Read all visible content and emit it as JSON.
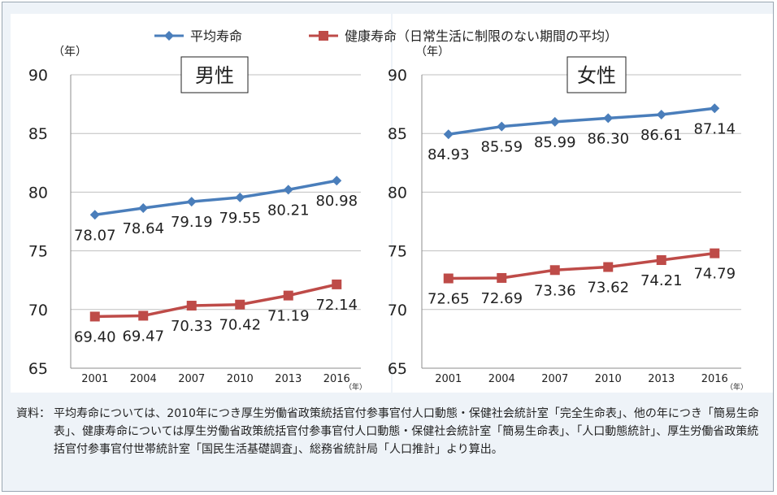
{
  "legend": {
    "series": [
      {
        "name": "平均寿命",
        "color": "#4a7ebb",
        "marker": "diamond"
      },
      {
        "name": "健康寿命（日常生活に制限のない期間の平均）",
        "color": "#be4b48",
        "marker": "square"
      }
    ]
  },
  "chart_data": [
    {
      "type": "line",
      "title": "男性",
      "ylabel": "（年）",
      "xlabel": "（年）",
      "x": [
        "2001",
        "2004",
        "2007",
        "2010",
        "2013",
        "2016"
      ],
      "y_ticks": [
        "65",
        "70",
        "75",
        "80",
        "85",
        "90"
      ],
      "ylim": [
        65,
        90
      ],
      "grid": true,
      "series": [
        {
          "name": "平均寿命",
          "color": "#4a7ebb",
          "marker": "diamond",
          "values": [
            78.07,
            78.64,
            79.19,
            79.55,
            80.21,
            80.98
          ],
          "labels": [
            "78.07",
            "78.64",
            "79.19",
            "79.55",
            "80.21",
            "80.98"
          ]
        },
        {
          "name": "健康寿命（日常生活に制限のない期間の平均）",
          "color": "#be4b48",
          "marker": "square",
          "values": [
            69.4,
            69.47,
            70.33,
            70.42,
            71.19,
            72.14
          ],
          "labels": [
            "69.40",
            "69.47",
            "70.33",
            "70.42",
            "71.19",
            "72.14"
          ]
        }
      ]
    },
    {
      "type": "line",
      "title": "女性",
      "ylabel": "（年）",
      "xlabel": "（年）",
      "x": [
        "2001",
        "2004",
        "2007",
        "2010",
        "2013",
        "2016"
      ],
      "y_ticks": [
        "65",
        "70",
        "75",
        "80",
        "85",
        "90"
      ],
      "ylim": [
        65,
        90
      ],
      "grid": true,
      "series": [
        {
          "name": "平均寿命",
          "color": "#4a7ebb",
          "marker": "diamond",
          "values": [
            84.93,
            85.59,
            85.99,
            86.3,
            86.61,
            87.14
          ],
          "labels": [
            "84.93",
            "85.59",
            "85.99",
            "86.30",
            "86.61",
            "87.14"
          ]
        },
        {
          "name": "健康寿命（日常生活に制限のない期間の平均）",
          "color": "#be4b48",
          "marker": "square",
          "values": [
            72.65,
            72.69,
            73.36,
            73.62,
            74.21,
            74.79
          ],
          "labels": [
            "72.65",
            "72.69",
            "73.36",
            "73.62",
            "74.21",
            "74.79"
          ]
        }
      ]
    }
  ],
  "note": {
    "label": "資料：",
    "text": "平均寿命については、2010年につき厚生労働省政策統括官付参事官付人口動態・保健社会統計室「完全生命表」、他の年につき「簡易生命表」、健康寿命については厚生労働省政策統括官付参事官付人口動態・保健社会統計室「簡易生命表」、「人口動態統計」、厚生労働省政策統括官付参事官付世帯統計室「国民生活基礎調査」、総務省統計局「人口推計」より算出。"
  }
}
